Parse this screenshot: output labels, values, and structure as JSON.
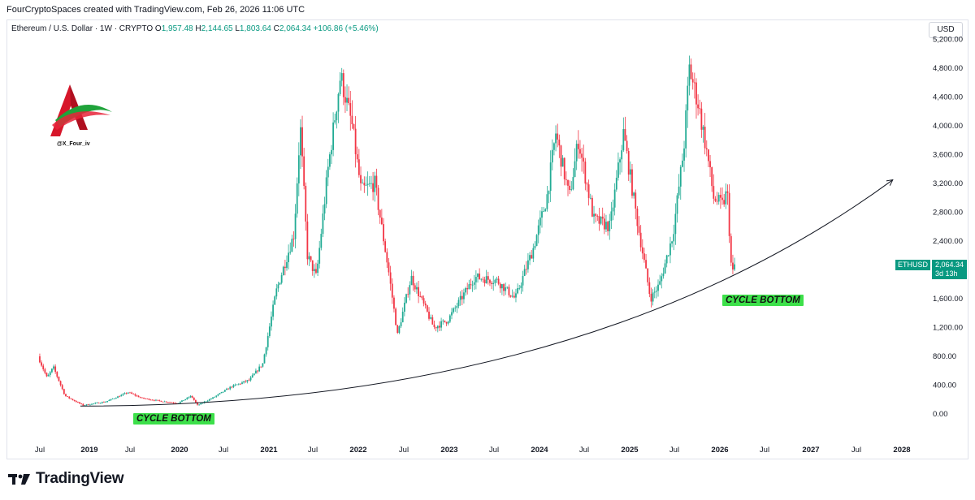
{
  "header": {
    "creator_line": "FourCryptoSpaces created with TradingView.com, Feb 26, 2026 11:06 UTC"
  },
  "legend": {
    "title": "Ethereum / U.S. Dollar · 1W · CRYPTO",
    "o_label": "O",
    "o_value": "1,957.48",
    "h_label": "H",
    "h_value": "2,144.65",
    "l_label": "L",
    "l_value": "1,803.64",
    "c_label": "C",
    "c_value": "2,064.34",
    "change": "+106.86 (+5.46%)"
  },
  "currency_button": "USD",
  "watermark_handle": "@X_Four_iv",
  "price_label": {
    "symbol": "ETHUSD",
    "price": "2,064.34",
    "countdown": "3d 13h"
  },
  "annotations": {
    "left_tag": "CYCLE BOTTOM",
    "right_tag": "CYCLE BOTTOM"
  },
  "brand": {
    "name": "TradingView"
  },
  "colors": {
    "up": "#22ab94",
    "down": "#f23645",
    "accent": "#089981",
    "tag_bg": "#3de04a"
  },
  "chart_data": {
    "type": "candlestick",
    "symbol": "ETHUSD",
    "interval": "1W",
    "y_ticks": [
      "0.00",
      "400.00",
      "800.00",
      "1,200.00",
      "1,600.00",
      "2,000.00",
      "2,400.00",
      "2,800.00",
      "3,200.00",
      "3,600.00",
      "4,000.00",
      "4,400.00",
      "4,800.00",
      "5,200.00"
    ],
    "x_ticks": [
      "Jul",
      "2019",
      "Jul",
      "2020",
      "Jul",
      "2021",
      "Jul",
      "2022",
      "Jul",
      "2023",
      "Jul",
      "2024",
      "Jul",
      "2025",
      "Jul",
      "2026",
      "Jul",
      "2027",
      "Jul",
      "2028"
    ],
    "ylim": [
      0,
      5200
    ],
    "price_path": [
      [
        2018.45,
        800
      ],
      [
        2018.55,
        500
      ],
      [
        2018.62,
        650
      ],
      [
        2018.75,
        250
      ],
      [
        2018.95,
        120
      ],
      [
        2019.2,
        170
      ],
      [
        2019.45,
        300
      ],
      [
        2019.6,
        220
      ],
      [
        2019.8,
        180
      ],
      [
        2020.0,
        150
      ],
      [
        2020.15,
        250
      ],
      [
        2020.22,
        120
      ],
      [
        2020.4,
        230
      ],
      [
        2020.6,
        380
      ],
      [
        2020.8,
        470
      ],
      [
        2020.95,
        700
      ],
      [
        2021.1,
        1700
      ],
      [
        2021.3,
        2500
      ],
      [
        2021.37,
        4000
      ],
      [
        2021.45,
        2200
      ],
      [
        2021.55,
        1900
      ],
      [
        2021.68,
        3400
      ],
      [
        2021.82,
        4700
      ],
      [
        2021.95,
        4000
      ],
      [
        2022.05,
        3100
      ],
      [
        2022.2,
        3200
      ],
      [
        2022.35,
        2000
      ],
      [
        2022.45,
        1100
      ],
      [
        2022.6,
        1900
      ],
      [
        2022.85,
        1200
      ],
      [
        2023.0,
        1300
      ],
      [
        2023.3,
        1900
      ],
      [
        2023.55,
        1850
      ],
      [
        2023.75,
        1600
      ],
      [
        2023.95,
        2300
      ],
      [
        2024.1,
        3000
      ],
      [
        2024.2,
        3900
      ],
      [
        2024.35,
        3000
      ],
      [
        2024.45,
        3800
      ],
      [
        2024.62,
        2700
      ],
      [
        2024.8,
        2600
      ],
      [
        2024.95,
        3900
      ],
      [
        2025.1,
        2700
      ],
      [
        2025.25,
        1600
      ],
      [
        2025.35,
        1800
      ],
      [
        2025.5,
        2500
      ],
      [
        2025.62,
        3700
      ],
      [
        2025.68,
        4800
      ],
      [
        2025.78,
        4300
      ],
      [
        2025.88,
        3600
      ],
      [
        2025.95,
        3000
      ],
      [
        2026.05,
        2900
      ],
      [
        2026.1,
        3100
      ],
      [
        2026.15,
        1900
      ],
      [
        2026.18,
        2064
      ]
    ],
    "trendline": {
      "from": [
        2018.9,
        110
      ],
      "to": [
        2027.9,
        3250
      ]
    },
    "current_price": 2064.34
  }
}
